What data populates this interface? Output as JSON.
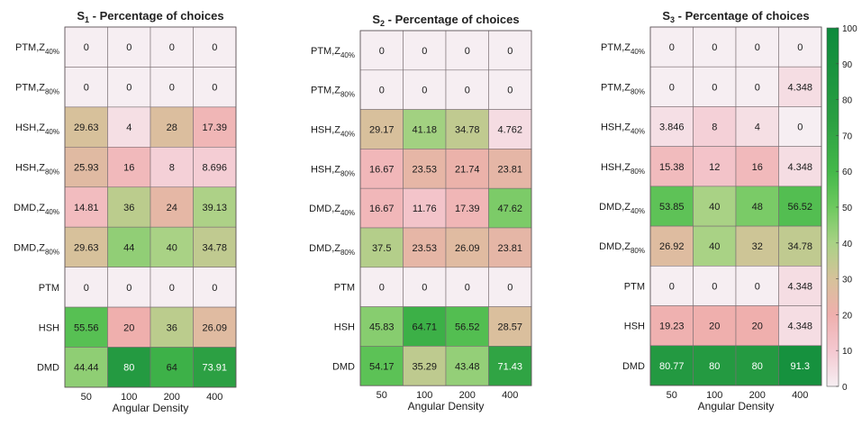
{
  "chart_data": [
    {
      "type": "heatmap",
      "title": "S",
      "title_sub": "1",
      "title_suffix": " - Percentage of choices",
      "xlabel": "Angular Density",
      "categories": [
        "50",
        "100",
        "200",
        "400"
      ],
      "rows": [
        {
          "base": "PTM,Z",
          "sub": "40%"
        },
        {
          "base": "PTM,Z",
          "sub": "80%"
        },
        {
          "base": "HSH,Z",
          "sub": "40%"
        },
        {
          "base": "HSH,Z",
          "sub": "80%"
        },
        {
          "base": "DMD,Z",
          "sub": "40%"
        },
        {
          "base": "DMD,Z",
          "sub": "80%"
        },
        {
          "base": "PTM",
          "sub": ""
        },
        {
          "base": "HSH",
          "sub": ""
        },
        {
          "base": "DMD",
          "sub": ""
        }
      ],
      "values": [
        [
          "0",
          "0",
          "0",
          "0"
        ],
        [
          "0",
          "0",
          "0",
          "0"
        ],
        [
          "29.63",
          "4",
          "28",
          "17.39"
        ],
        [
          "25.93",
          "16",
          "8",
          "8.696"
        ],
        [
          "14.81",
          "36",
          "24",
          "39.13"
        ],
        [
          "29.63",
          "44",
          "40",
          "34.78"
        ],
        [
          "0",
          "0",
          "0",
          "0"
        ],
        [
          "55.56",
          "20",
          "36",
          "26.09"
        ],
        [
          "44.44",
          "80",
          "64",
          "73.91"
        ]
      ]
    },
    {
      "type": "heatmap",
      "title": "S",
      "title_sub": "2",
      "title_suffix": " - Percentage of choices",
      "xlabel": "Angular Density",
      "categories": [
        "50",
        "100",
        "200",
        "400"
      ],
      "rows": [
        {
          "base": "PTM,Z",
          "sub": "40%"
        },
        {
          "base": "PTM,Z",
          "sub": "80%"
        },
        {
          "base": "HSH,Z",
          "sub": "40%"
        },
        {
          "base": "HSH,Z",
          "sub": "80%"
        },
        {
          "base": "DMD,Z",
          "sub": "40%"
        },
        {
          "base": "DMD,Z",
          "sub": "80%"
        },
        {
          "base": "PTM",
          "sub": ""
        },
        {
          "base": "HSH",
          "sub": ""
        },
        {
          "base": "DMD",
          "sub": ""
        }
      ],
      "values": [
        [
          "0",
          "0",
          "0",
          "0"
        ],
        [
          "0",
          "0",
          "0",
          "0"
        ],
        [
          "29.17",
          "41.18",
          "34.78",
          "4.762"
        ],
        [
          "16.67",
          "23.53",
          "21.74",
          "23.81"
        ],
        [
          "16.67",
          "11.76",
          "17.39",
          "47.62"
        ],
        [
          "37.5",
          "23.53",
          "26.09",
          "23.81"
        ],
        [
          "0",
          "0",
          "0",
          "0"
        ],
        [
          "45.83",
          "64.71",
          "56.52",
          "28.57"
        ],
        [
          "54.17",
          "35.29",
          "43.48",
          "71.43"
        ]
      ]
    },
    {
      "type": "heatmap",
      "title": "S",
      "title_sub": "3",
      "title_suffix": " - Percentage of choices",
      "xlabel": "Angular Density",
      "categories": [
        "50",
        "100",
        "200",
        "400"
      ],
      "rows": [
        {
          "base": "PTM,Z",
          "sub": "40%"
        },
        {
          "base": "PTM,Z",
          "sub": "80%"
        },
        {
          "base": "HSH,Z",
          "sub": "40%"
        },
        {
          "base": "HSH,Z",
          "sub": "80%"
        },
        {
          "base": "DMD,Z",
          "sub": "40%"
        },
        {
          "base": "DMD,Z",
          "sub": "80%"
        },
        {
          "base": "PTM",
          "sub": ""
        },
        {
          "base": "HSH",
          "sub": ""
        },
        {
          "base": "DMD",
          "sub": ""
        }
      ],
      "values": [
        [
          "0",
          "0",
          "0",
          "0"
        ],
        [
          "0",
          "0",
          "0",
          "4.348"
        ],
        [
          "3.846",
          "8",
          "4",
          "0"
        ],
        [
          "15.38",
          "12",
          "16",
          "4.348"
        ],
        [
          "53.85",
          "40",
          "48",
          "56.52"
        ],
        [
          "26.92",
          "40",
          "32",
          "34.78"
        ],
        [
          "0",
          "0",
          "0",
          "4.348"
        ],
        [
          "19.23",
          "20",
          "20",
          "4.348"
        ],
        [
          "80.77",
          "80",
          "80",
          "91.3"
        ]
      ]
    }
  ],
  "colorbar": {
    "range": [
      0,
      100
    ],
    "ticks": [
      "0",
      "10",
      "20",
      "30",
      "40",
      "50",
      "60",
      "70",
      "80",
      "90",
      "100"
    ],
    "color_stops": [
      {
        "value": 0,
        "color": "#f6eef2"
      },
      {
        "value": 10,
        "color": "#f4c8d0"
      },
      {
        "value": 20,
        "color": "#efafad"
      },
      {
        "value": 30,
        "color": "#d6c29a"
      },
      {
        "value": 40,
        "color": "#a9d285"
      },
      {
        "value": 50,
        "color": "#6ec95f"
      },
      {
        "value": 60,
        "color": "#44b84a"
      },
      {
        "value": 75,
        "color": "#2a9e42"
      },
      {
        "value": 100,
        "color": "#0c8a3c"
      }
    ]
  }
}
